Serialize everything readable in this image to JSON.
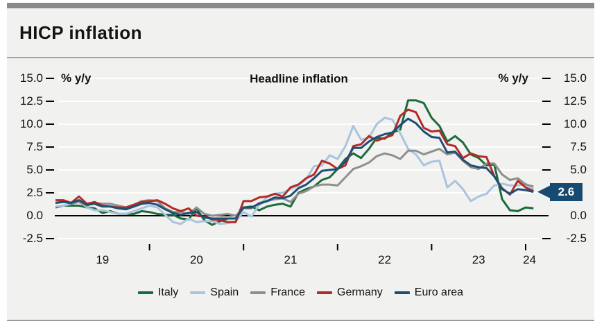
{
  "panel": {
    "title": "HICP inflation"
  },
  "chart_data": {
    "type": "line",
    "title": "Headline inflation",
    "unit_left": "% y/y",
    "unit_right": "% y/y",
    "x_start": "2019-01",
    "x_end": "2024-02",
    "x_frequency": "monthly",
    "xtick_year_labels": [
      "19",
      "20",
      "21",
      "22",
      "23",
      "24"
    ],
    "ylim": [
      -2.5,
      15.0
    ],
    "ytick_values": [
      15.0,
      12.5,
      10.0,
      7.5,
      5.0,
      2.5,
      0.0,
      -2.5
    ],
    "ytick_labels_left": [
      "15.0",
      "12.5",
      "10.0",
      "7.5",
      "5.0",
      "2.5",
      "0.0",
      "-2.5"
    ],
    "ytick_values_right": [
      15.0,
      12.5,
      10.0,
      7.5,
      5.0,
      0.0,
      -2.5
    ],
    "ytick_labels_right": [
      "15.0",
      "12.5",
      "10.0",
      "7.5",
      "5.0",
      "0.0",
      "-2.5"
    ],
    "grid": true,
    "zero_line": true,
    "legend_position": "bottom",
    "colors": {
      "background": "#f1f1ef",
      "gridline": "#ffffff",
      "zero_line": "#000000",
      "annotation_box": "#174a70"
    },
    "series": [
      {
        "name": "Italy",
        "color": "#1a6b3c",
        "values": [
          0.9,
          1.1,
          1.1,
          1.1,
          0.9,
          0.8,
          0.3,
          0.5,
          0.2,
          0.2,
          0.2,
          0.5,
          0.4,
          0.2,
          0.1,
          0.1,
          -0.3,
          -0.4,
          0.8,
          -0.5,
          -1.0,
          -0.6,
          -0.3,
          -0.3,
          0.9,
          1.0,
          0.6,
          1.0,
          1.2,
          1.3,
          1.0,
          2.5,
          2.9,
          3.2,
          3.9,
          4.2,
          5.1,
          6.2,
          6.8,
          6.3,
          7.3,
          8.5,
          8.4,
          9.1,
          9.4,
          12.6,
          12.6,
          12.3,
          10.7,
          9.8,
          8.1,
          8.7,
          8.0,
          6.7,
          6.3,
          5.5,
          5.6,
          1.8,
          0.6,
          0.5,
          0.9,
          0.8
        ]
      },
      {
        "name": "Spain",
        "color": "#a9c4dd",
        "values": [
          1.0,
          1.1,
          1.3,
          1.6,
          0.9,
          0.6,
          0.6,
          0.4,
          0.2,
          0.2,
          0.5,
          0.8,
          1.1,
          0.9,
          0.1,
          -0.7,
          -0.9,
          -0.3,
          -0.7,
          -0.6,
          -0.6,
          -0.9,
          -0.8,
          -0.6,
          0.4,
          -0.1,
          1.2,
          2.0,
          2.4,
          2.5,
          2.9,
          3.3,
          4.0,
          5.4,
          5.5,
          6.6,
          6.2,
          7.6,
          9.8,
          8.3,
          8.5,
          10.0,
          10.7,
          10.5,
          9.0,
          7.3,
          6.7,
          5.5,
          5.9,
          6.0,
          3.1,
          3.8,
          2.9,
          1.6,
          2.1,
          2.4,
          3.3,
          3.5,
          3.3,
          3.3,
          3.5,
          2.9
        ]
      },
      {
        "name": "France",
        "color": "#8f8f8d",
        "values": [
          1.4,
          1.6,
          1.3,
          1.5,
          1.1,
          1.4,
          1.3,
          1.3,
          1.1,
          0.9,
          1.2,
          1.6,
          1.7,
          1.6,
          0.8,
          0.4,
          0.4,
          0.2,
          0.9,
          0.2,
          0.0,
          0.1,
          0.2,
          0.0,
          0.8,
          0.8,
          1.4,
          1.6,
          1.8,
          1.9,
          1.5,
          2.4,
          2.7,
          3.2,
          3.4,
          3.4,
          3.3,
          4.2,
          5.1,
          5.4,
          5.8,
          6.5,
          6.8,
          6.6,
          6.2,
          7.1,
          7.1,
          6.7,
          7.0,
          7.3,
          6.7,
          6.9,
          6.0,
          5.3,
          5.1,
          5.7,
          5.7,
          4.5,
          3.9,
          4.1,
          3.4,
          3.2
        ]
      },
      {
        "name": "Germany",
        "color": "#b32b27",
        "values": [
          1.7,
          1.7,
          1.4,
          2.1,
          1.3,
          1.5,
          1.1,
          1.0,
          0.9,
          0.9,
          1.2,
          1.5,
          1.6,
          1.7,
          1.3,
          0.8,
          0.5,
          0.8,
          0.0,
          -0.1,
          -0.4,
          -0.5,
          -0.7,
          -0.7,
          1.6,
          1.6,
          2.0,
          2.1,
          2.4,
          2.1,
          3.1,
          3.4,
          4.1,
          4.5,
          6.0,
          5.7,
          5.1,
          5.5,
          7.6,
          7.8,
          8.7,
          8.2,
          8.5,
          8.8,
          10.9,
          11.6,
          11.3,
          9.6,
          9.2,
          9.3,
          7.8,
          7.6,
          6.3,
          6.8,
          6.5,
          6.4,
          4.3,
          3.0,
          2.3,
          3.8,
          3.1,
          2.7
        ]
      },
      {
        "name": "Euro area",
        "color": "#1d4e74",
        "values": [
          1.4,
          1.5,
          1.4,
          1.7,
          1.2,
          1.3,
          1.0,
          1.0,
          0.8,
          0.7,
          1.0,
          1.3,
          1.4,
          1.2,
          0.7,
          0.3,
          0.1,
          0.3,
          0.4,
          -0.2,
          -0.3,
          -0.3,
          -0.3,
          -0.3,
          0.9,
          0.9,
          1.3,
          1.6,
          2.0,
          1.9,
          2.2,
          3.0,
          3.4,
          4.1,
          4.9,
          5.0,
          5.1,
          5.9,
          7.4,
          7.4,
          8.1,
          8.6,
          8.9,
          9.1,
          9.9,
          10.6,
          10.1,
          9.2,
          8.6,
          8.5,
          6.9,
          7.0,
          6.1,
          5.5,
          5.3,
          5.2,
          4.3,
          2.9,
          2.4,
          2.9,
          2.8,
          2.6
        ]
      }
    ],
    "annotation": {
      "label": "2.6",
      "value": 2.6,
      "series": "Euro area",
      "box_color": "#174a70",
      "text_color": "#ffffff"
    }
  }
}
